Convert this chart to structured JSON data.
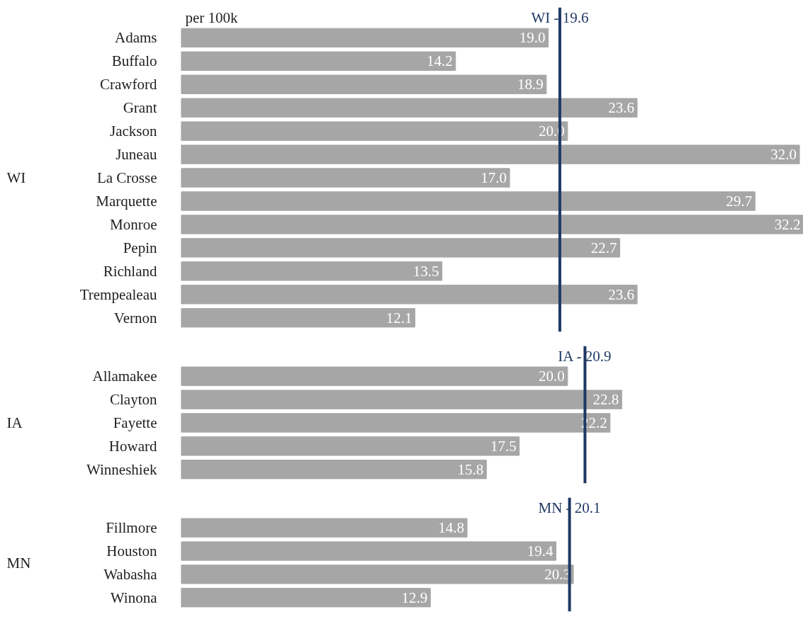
{
  "chart_data": [
    {
      "type": "bar",
      "orientation": "horizontal",
      "ylabel": "WI",
      "xlabel": "per 100k",
      "categories": [
        "Adams",
        "Buffalo",
        "Crawford",
        "Grant",
        "Jackson",
        "Juneau",
        "La Crosse",
        "Marquette",
        "Monroe",
        "Pepin",
        "Richland",
        "Trempealeau",
        "Vernon"
      ],
      "values": [
        19.0,
        14.2,
        18.9,
        23.6,
        20.0,
        32.0,
        17.0,
        29.7,
        32.2,
        22.7,
        13.5,
        23.6,
        12.1
      ],
      "value_labels": [
        "19.0",
        "14.2",
        "18.9",
        "23.6",
        "20.0",
        "32.0",
        "17.0",
        "29.7",
        "32.2",
        "22.7",
        "13.5",
        "23.6",
        "12.1"
      ],
      "color": "#a6a6a6",
      "tick_labels": "y",
      "grid": false,
      "ref_lines": [
        {
          "axis": "x",
          "value": 19.6,
          "label": "WI - 19.6",
          "color": "#1f3864"
        }
      ]
    },
    {
      "type": "bar",
      "orientation": "horizontal",
      "ylabel": "IA",
      "categories": [
        "Allamakee",
        "Clayton",
        "Fayette",
        "Howard",
        "Winneshiek"
      ],
      "values": [
        20.0,
        22.8,
        22.2,
        17.5,
        15.8
      ],
      "value_labels": [
        "20.0",
        "22.8",
        "22.2",
        "17.5",
        "15.8"
      ],
      "color": "#a6a6a6",
      "tick_labels": "y",
      "grid": false,
      "ref_lines": [
        {
          "axis": "x",
          "value": 20.9,
          "label": "IA - 20.9",
          "color": "#1f3864"
        }
      ]
    },
    {
      "type": "bar",
      "orientation": "horizontal",
      "ylabel": "MN",
      "categories": [
        "Fillmore",
        "Houston",
        "Wabasha",
        "Winona"
      ],
      "values": [
        14.8,
        19.4,
        20.3,
        12.9
      ],
      "value_labels": [
        "14.8",
        "19.4",
        "20.3",
        "12.9"
      ],
      "color": "#a6a6a6",
      "tick_labels": "y",
      "grid": false,
      "ref_lines": [
        {
          "axis": "x",
          "value": 20.1,
          "label": "MN - 20.1",
          "color": "#1f3864"
        }
      ]
    }
  ]
}
